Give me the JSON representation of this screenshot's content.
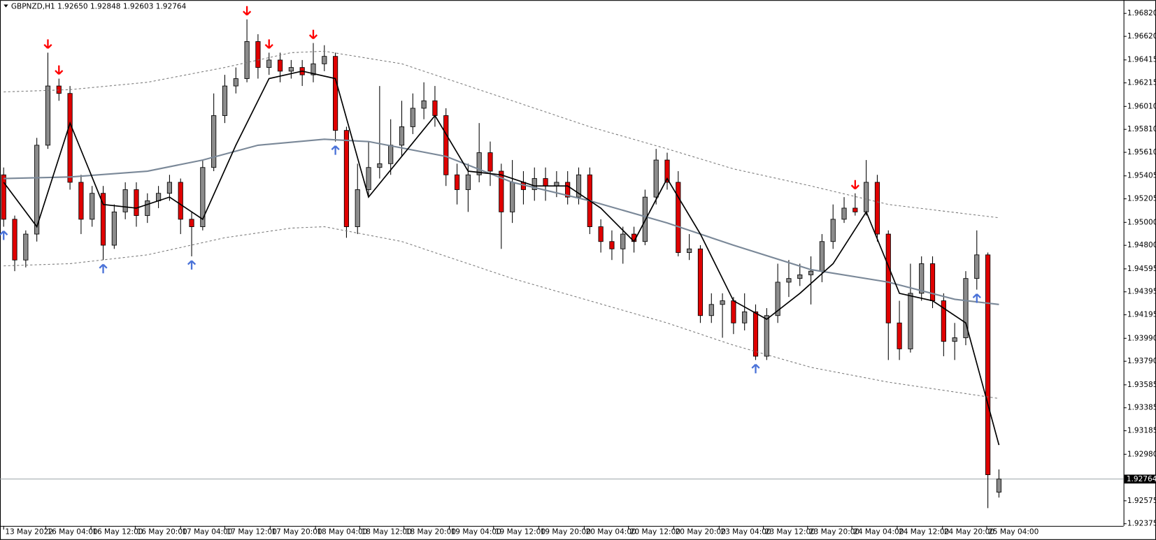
{
  "chart_data": {
    "type": "candlestick",
    "title": "GBPNZD,H1  1.92650 1.92848 1.92603 1.92764",
    "xlim": [
      -0.33,
      101.27
    ],
    "ylim": [
      1.92356,
      1.96936
    ],
    "up_color": "#8c8c8c",
    "down_color": "#e00000",
    "yticks": [
      {
        "value": 1.9682,
        "label": "1.96820"
      },
      {
        "value": 1.9662,
        "label": "1.96620"
      },
      {
        "value": 1.96415,
        "label": "1.96415"
      },
      {
        "value": 1.96215,
        "label": "1.96215"
      },
      {
        "value": 1.9601,
        "label": "1.96010"
      },
      {
        "value": 1.9581,
        "label": "1.95810"
      },
      {
        "value": 1.9561,
        "label": "1.95610"
      },
      {
        "value": 1.95405,
        "label": "1.95405"
      },
      {
        "value": 1.95205,
        "label": "1.95205"
      },
      {
        "value": 1.95,
        "label": "1.95000"
      },
      {
        "value": 1.948,
        "label": "1.94800"
      },
      {
        "value": 1.94595,
        "label": "1.94595"
      },
      {
        "value": 1.94395,
        "label": "1.94395"
      },
      {
        "value": 1.94195,
        "label": "1.94195"
      },
      {
        "value": 1.9399,
        "label": "1.93990"
      },
      {
        "value": 1.9379,
        "label": "1.93790"
      },
      {
        "value": 1.93585,
        "label": "1.93585"
      },
      {
        "value": 1.93385,
        "label": "1.93385"
      },
      {
        "value": 1.93185,
        "label": "1.93185"
      },
      {
        "value": 1.9298,
        "label": "1.92980"
      },
      {
        "value": 1.92575,
        "label": "1.92575"
      },
      {
        "value": 1.92375,
        "label": "1.92375"
      }
    ],
    "xticks": [
      {
        "value": 0,
        "label": "13 May 2022"
      },
      {
        "value": 3.8,
        "label": "16 May 04:00"
      },
      {
        "value": 7.9,
        "label": "16 May 12:00"
      },
      {
        "value": 11.9,
        "label": "16 May 20:00"
      },
      {
        "value": 16,
        "label": "17 May 04:00"
      },
      {
        "value": 20,
        "label": "17 May 12:00"
      },
      {
        "value": 24.1,
        "label": "17 May 20:00"
      },
      {
        "value": 28.2,
        "label": "18 May 04:00"
      },
      {
        "value": 32.2,
        "label": "18 May 12:00"
      },
      {
        "value": 36.2,
        "label": "18 May 20:00"
      },
      {
        "value": 40.3,
        "label": "19 May 04:00"
      },
      {
        "value": 44.3,
        "label": "19 May 12:00"
      },
      {
        "value": 48.4,
        "label": "19 May 20:00"
      },
      {
        "value": 52.5,
        "label": "20 May 04:00"
      },
      {
        "value": 56.5,
        "label": "20 May 12:00"
      },
      {
        "value": 60.6,
        "label": "20 May 20:00"
      },
      {
        "value": 64.7,
        "label": "23 May 04:00"
      },
      {
        "value": 68.7,
        "label": "23 May 12:00"
      },
      {
        "value": 72.7,
        "label": "23 May 20:00"
      },
      {
        "value": 76.7,
        "label": "24 May 04:00"
      },
      {
        "value": 80.8,
        "label": "24 May 12:00"
      },
      {
        "value": 84.9,
        "label": "24 May 20:00"
      },
      {
        "value": 88.9,
        "label": "25 May 04:00"
      }
    ],
    "open": [
      1.95414,
      1.95027,
      1.94672,
      1.94898,
      1.95672,
      1.96188,
      1.96123,
      1.95349,
      1.95027,
      1.95253,
      1.94801,
      1.95091,
      1.95285,
      1.95059,
      1.95188,
      1.95253,
      1.95349,
      1.95027,
      1.94962,
      1.95478,
      1.9593,
      1.96188,
      1.96252,
      1.96575,
      1.96349,
      1.96414,
      1.96317,
      1.96349,
      1.96285,
      1.96381,
      1.96446,
      1.95801,
      1.94962,
      1.95285,
      1.95478,
      1.95511,
      1.95672,
      1.95833,
      1.95994,
      1.96059,
      1.9593,
      1.95414,
      1.95285,
      1.95414,
      1.95607,
      1.95446,
      1.95091,
      1.95349,
      1.95285,
      1.95382,
      1.95317,
      1.95349,
      1.9522,
      1.95414,
      1.94962,
      1.94833,
      1.94769,
      1.94898,
      1.94833,
      1.9522,
      1.95543,
      1.95349,
      1.94737,
      1.94769,
      1.94188,
      1.94285,
      1.94317,
      1.94124,
      1.94221,
      1.93834,
      1.94188,
      1.94479,
      1.94511,
      1.94543,
      1.94575,
      1.94833,
      1.95027,
      1.95124,
      1.95091,
      1.95349,
      1.94898,
      1.94124,
      1.93898,
      1.94382,
      1.9464,
      1.94317,
      1.93963,
      1.93995,
      1.94511,
      1.94717,
      1.9265
    ],
    "high": [
      1.95478,
      1.95059,
      1.9493,
      1.95736,
      1.96478,
      1.96252,
      1.96188,
      1.95414,
      1.95317,
      1.95317,
      1.95156,
      1.95349,
      1.95349,
      1.95253,
      1.95317,
      1.95414,
      1.95382,
      1.95091,
      1.95543,
      1.96123,
      1.96285,
      1.96349,
      1.96768,
      1.96639,
      1.96478,
      1.96478,
      1.96414,
      1.96414,
      1.96562,
      1.96543,
      1.96478,
      1.95833,
      1.95511,
      1.95704,
      1.96188,
      1.95898,
      1.96059,
      1.96123,
      1.9622,
      1.96188,
      1.95994,
      1.95511,
      1.95511,
      1.95865,
      1.95704,
      1.95511,
      1.95543,
      1.95446,
      1.95478,
      1.95478,
      1.95446,
      1.95446,
      1.95478,
      1.95478,
      1.95027,
      1.9493,
      1.94962,
      1.94962,
      1.95285,
      1.9564,
      1.95607,
      1.95446,
      1.94898,
      1.94801,
      1.94382,
      1.94382,
      1.9435,
      1.94382,
      1.94285,
      1.94253,
      1.9464,
      1.94672,
      1.9464,
      1.94704,
      1.94898,
      1.95156,
      1.9522,
      1.95253,
      1.95543,
      1.95414,
      1.9493,
      1.94317,
      1.9464,
      1.94704,
      1.94704,
      1.94382,
      1.94124,
      1.94575,
      1.9493,
      1.94737,
      1.92848
    ],
    "low": [
      1.94962,
      1.94575,
      1.94608,
      1.94833,
      1.9564,
      1.96059,
      1.95285,
      1.94898,
      1.94962,
      1.94672,
      1.94769,
      1.95027,
      1.94962,
      1.94995,
      1.95124,
      1.95188,
      1.94898,
      1.94704,
      1.9493,
      1.95446,
      1.95865,
      1.96123,
      1.9622,
      1.96252,
      1.96285,
      1.9622,
      1.96252,
      1.96188,
      1.9622,
      1.96317,
      1.95704,
      1.94866,
      1.94898,
      1.9522,
      1.95382,
      1.95414,
      1.95575,
      1.95769,
      1.95898,
      1.95833,
      1.95317,
      1.95156,
      1.95091,
      1.95349,
      1.95317,
      1.94769,
      1.94995,
      1.95156,
      1.95188,
      1.95188,
      1.9522,
      1.95156,
      1.95156,
      1.94898,
      1.94737,
      1.94672,
      1.9464,
      1.94737,
      1.94801,
      1.95156,
      1.95285,
      1.94704,
      1.94672,
      1.94124,
      1.94124,
      1.93995,
      1.94027,
      1.94059,
      1.93801,
      1.93801,
      1.94124,
      1.9435,
      1.94446,
      1.94285,
      1.94479,
      1.94769,
      1.94995,
      1.95059,
      1.95059,
      1.94833,
      1.93801,
      1.93801,
      1.93866,
      1.94317,
      1.94253,
      1.93834,
      1.93801,
      1.9393,
      1.94414,
      1.92511,
      1.92603
    ],
    "close": [
      1.95027,
      1.94672,
      1.94898,
      1.95672,
      1.96188,
      1.96123,
      1.95349,
      1.95027,
      1.95253,
      1.94801,
      1.95091,
      1.95285,
      1.95059,
      1.95188,
      1.95253,
      1.95349,
      1.95027,
      1.94962,
      1.95478,
      1.9593,
      1.96188,
      1.96252,
      1.96575,
      1.96349,
      1.96414,
      1.96317,
      1.96349,
      1.96285,
      1.96381,
      1.96446,
      1.95801,
      1.94962,
      1.95285,
      1.95478,
      1.95511,
      1.95672,
      1.95833,
      1.95994,
      1.96059,
      1.9593,
      1.95414,
      1.95285,
      1.95414,
      1.95607,
      1.95446,
      1.95091,
      1.95349,
      1.95285,
      1.95382,
      1.95317,
      1.95349,
      1.9522,
      1.95414,
      1.94962,
      1.94833,
      1.94769,
      1.94898,
      1.94833,
      1.9522,
      1.95543,
      1.95349,
      1.94737,
      1.94769,
      1.94188,
      1.94285,
      1.94317,
      1.94124,
      1.94221,
      1.93834,
      1.94188,
      1.94479,
      1.94511,
      1.94543,
      1.94575,
      1.94833,
      1.95027,
      1.95124,
      1.95091,
      1.95349,
      1.94898,
      1.94124,
      1.93898,
      1.94382,
      1.9464,
      1.94317,
      1.93963,
      1.93995,
      1.94511,
      1.94717,
      1.92802,
      1.92764
    ],
    "lines": [
      {
        "color": "#7a8898",
        "width": 2,
        "dashed": false,
        "x": [
          0,
          6,
          13,
          18,
          23,
          29,
          33,
          40,
          46,
          53,
          60,
          66,
          73,
          80,
          86,
          90
        ],
        "values": [
          1.95382,
          1.95395,
          1.95446,
          1.95543,
          1.95672,
          1.95724,
          1.95704,
          1.95575,
          1.95349,
          1.95188,
          1.94995,
          1.94801,
          1.94588,
          1.94479,
          1.9433,
          1.94285
        ]
      },
      {
        "color": "#777777",
        "width": 1,
        "dashed": true,
        "x": [
          0,
          6,
          13,
          20,
          26,
          29,
          36,
          46,
          53,
          60,
          66,
          73,
          80,
          90
        ],
        "values": [
          1.96136,
          1.96156,
          1.9622,
          1.96349,
          1.96478,
          1.96491,
          1.96381,
          1.96059,
          1.95833,
          1.9564,
          1.95466,
          1.95317,
          1.95156,
          1.9504
        ]
      },
      {
        "color": "#777777",
        "width": 1,
        "dashed": true,
        "x": [
          0,
          6,
          13,
          20,
          26,
          29,
          36,
          46,
          53,
          60,
          66,
          73,
          80,
          90
        ],
        "values": [
          1.94621,
          1.9464,
          1.94717,
          1.94866,
          1.9495,
          1.94962,
          1.94833,
          1.94511,
          1.94317,
          1.94124,
          1.9393,
          1.93737,
          1.93608,
          1.93466
        ]
      },
      {
        "color": "#000000",
        "width": 1.6,
        "dashed": false,
        "x": [
          0,
          3,
          6,
          9,
          12,
          15,
          18,
          21,
          24,
          27,
          30,
          33,
          36,
          39,
          42,
          45,
          48,
          51,
          54,
          57,
          60,
          63,
          66,
          69,
          72,
          75,
          78,
          81,
          84,
          87,
          90
        ],
        "values": [
          1.95349,
          1.94962,
          1.95865,
          1.95156,
          1.95124,
          1.9522,
          1.95027,
          1.95672,
          1.96252,
          1.96317,
          1.96252,
          1.9522,
          1.95575,
          1.9593,
          1.95446,
          1.95414,
          1.95317,
          1.95317,
          1.95124,
          1.94833,
          1.95382,
          1.94898,
          1.94317,
          1.94156,
          1.94382,
          1.9464,
          1.95091,
          1.94382,
          1.94317,
          1.94124,
          1.9306
        ]
      }
    ],
    "signals": {
      "down": {
        "color": "#ff0000",
        "x": [
          4,
          5,
          22,
          24,
          28,
          77
        ]
      },
      "up": {
        "color": "#4a72d8",
        "x": [
          0,
          9,
          17,
          30,
          68,
          88
        ]
      }
    },
    "bid": {
      "value": 1.92764,
      "label": "1.92764"
    }
  }
}
